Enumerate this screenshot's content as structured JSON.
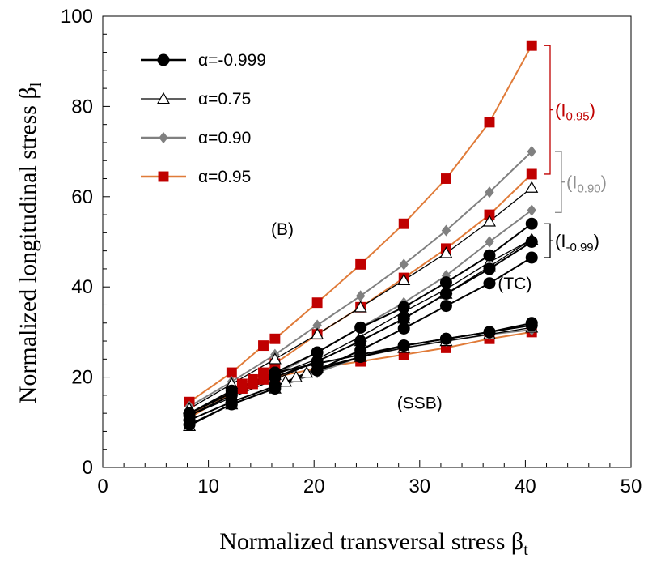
{
  "chart_data": {
    "type": "line",
    "xlabel": "Normalized transversal stress β",
    "xlabel_sub": "t",
    "ylabel": "Normalized longitudinal stress β",
    "ylabel_sub": "l",
    "xlim": [
      0,
      50
    ],
    "ylim": [
      0,
      100
    ],
    "xticks": [
      "0",
      "10",
      "20",
      "30",
      "40",
      "50"
    ],
    "yticks": [
      "0",
      "20",
      "40",
      "60",
      "80",
      "100"
    ],
    "grid": false,
    "legend_position": "top-left",
    "series": [
      {
        "name": "α=-0.999",
        "color": "#000000",
        "marker": "circle",
        "curves": [
          [
            [
              8.2,
              9.5
            ],
            [
              12.2,
              14
            ],
            [
              16.3,
              17.5
            ],
            [
              20.3,
              21.5
            ],
            [
              24.4,
              24.5
            ],
            [
              28.5,
              27
            ],
            [
              32.5,
              28.5
            ],
            [
              36.6,
              30
            ],
            [
              40.6,
              31.5
            ]
          ],
          [
            [
              8.2,
              12
            ],
            [
              12.2,
              17
            ],
            [
              16.3,
              21
            ],
            [
              20.3,
              23
            ],
            [
              24.4,
              25
            ],
            [
              28.5,
              27
            ],
            [
              32.5,
              28.5
            ],
            [
              36.6,
              30
            ],
            [
              40.6,
              32
            ]
          ],
          [
            [
              8.2,
              10.5
            ],
            [
              12.2,
              14.5
            ],
            [
              16.3,
              18
            ],
            [
              20.3,
              21.5
            ],
            [
              24.4,
              26
            ],
            [
              28.5,
              30.8
            ],
            [
              32.5,
              35.8
            ],
            [
              36.6,
              40.8
            ],
            [
              40.6,
              46.5
            ]
          ],
          [
            [
              8.2,
              11.5
            ],
            [
              12.2,
              16
            ],
            [
              16.3,
              20
            ],
            [
              20.3,
              23.5
            ],
            [
              24.4,
              28
            ],
            [
              28.5,
              33
            ],
            [
              32.5,
              38.5
            ],
            [
              36.6,
              44
            ],
            [
              40.6,
              50
            ]
          ],
          [
            [
              8.2,
              12
            ],
            [
              12.2,
              16.5
            ],
            [
              16.3,
              21
            ],
            [
              20.3,
              25.5
            ],
            [
              24.4,
              31
            ],
            [
              28.5,
              35.5
            ],
            [
              32.5,
              41
            ],
            [
              36.6,
              47
            ],
            [
              40.6,
              54
            ]
          ]
        ]
      },
      {
        "name": "α=0.75",
        "color": "#000000",
        "marker": "triangle",
        "curves": [
          [
            [
              8.2,
              9.2
            ],
            [
              12.2,
              14
            ],
            [
              16.3,
              17.5
            ],
            [
              17.3,
              19
            ],
            [
              18.3,
              20
            ],
            [
              19.3,
              21
            ],
            [
              20.3,
              22
            ],
            [
              24.4,
              24.5
            ],
            [
              28.5,
              26.5
            ],
            [
              32.5,
              28
            ],
            [
              36.6,
              29.5
            ],
            [
              40.6,
              31
            ]
          ],
          [
            [
              8.2,
              11.5
            ],
            [
              12.2,
              15.5
            ],
            [
              16.3,
              19.5
            ],
            [
              20.3,
              23.5
            ],
            [
              24.4,
              28
            ],
            [
              28.5,
              33
            ],
            [
              32.5,
              38.5
            ],
            [
              36.6,
              44.5
            ],
            [
              40.6,
              50.5
            ]
          ],
          [
            [
              8.2,
              11.5
            ],
            [
              12.2,
              16
            ],
            [
              16.3,
              20.5
            ],
            [
              20.3,
              24
            ],
            [
              24.4,
              29
            ],
            [
              28.5,
              34.5
            ],
            [
              32.5,
              39.5
            ],
            [
              36.6,
              45.5
            ],
            [
              40.6,
              50.5
            ]
          ],
          [
            [
              8.2,
              13
            ],
            [
              12.2,
              18.5
            ],
            [
              16.3,
              24
            ],
            [
              20.3,
              29.5
            ],
            [
              24.4,
              35.5
            ],
            [
              28.5,
              41.5
            ],
            [
              32.5,
              47.5
            ],
            [
              36.6,
              54.5
            ],
            [
              40.6,
              62
            ]
          ]
        ]
      },
      {
        "name": "α=0.90",
        "color": "#808080",
        "marker": "diamond",
        "curves": [
          [
            [
              8.2,
              9.5
            ],
            [
              12.2,
              14
            ],
            [
              16.3,
              17.5
            ],
            [
              20.3,
              21
            ],
            [
              24.4,
              24.5
            ],
            [
              28.5,
              26.5
            ],
            [
              32.5,
              28
            ],
            [
              36.6,
              29.5
            ],
            [
              40.6,
              30.5
            ]
          ],
          [
            [
              8.2,
              11.5
            ],
            [
              12.2,
              16
            ],
            [
              16.3,
              20.5
            ],
            [
              20.3,
              25.5
            ],
            [
              24.4,
              31
            ],
            [
              28.5,
              36.5
            ],
            [
              32.5,
              42.5
            ],
            [
              36.6,
              50
            ],
            [
              40.6,
              57
            ]
          ],
          [
            [
              8.2,
              13.5
            ],
            [
              12.2,
              19
            ],
            [
              16.3,
              25
            ],
            [
              20.3,
              31.5
            ],
            [
              24.4,
              38
            ],
            [
              28.5,
              45
            ],
            [
              32.5,
              52.5
            ],
            [
              36.6,
              61
            ],
            [
              40.6,
              70
            ]
          ]
        ]
      },
      {
        "name": "α=0.95",
        "color": "#c00000",
        "line_color": "#e07b39",
        "marker": "square",
        "curves": [
          [
            [
              8.2,
              11
            ],
            [
              12.2,
              16.5
            ],
            [
              13.2,
              17.5
            ],
            [
              14.2,
              18.5
            ],
            [
              15.2,
              19.5
            ],
            [
              16.3,
              20
            ],
            [
              20.3,
              22
            ],
            [
              24.4,
              23.5
            ],
            [
              28.5,
              25
            ],
            [
              32.5,
              26.5
            ],
            [
              36.6,
              28.5
            ],
            [
              40.6,
              30
            ]
          ],
          [
            [
              8.2,
              11.5
            ],
            [
              12.2,
              17
            ],
            [
              13.2,
              18.5
            ],
            [
              14.2,
              19.5
            ],
            [
              15.2,
              21
            ],
            [
              16.3,
              23
            ],
            [
              20.3,
              29.5
            ],
            [
              24.4,
              35.5
            ],
            [
              28.5,
              42
            ],
            [
              32.5,
              48.5
            ],
            [
              36.6,
              56
            ],
            [
              40.6,
              65
            ]
          ],
          [
            [
              8.2,
              14.5
            ],
            [
              12.2,
              21
            ],
            [
              15.2,
              27
            ],
            [
              16.3,
              28.5
            ],
            [
              20.3,
              36.5
            ],
            [
              24.4,
              45
            ],
            [
              28.5,
              54
            ],
            [
              32.5,
              64
            ],
            [
              36.6,
              76.5
            ],
            [
              40.6,
              93.5
            ]
          ]
        ]
      }
    ],
    "annotations": [
      {
        "text": "(B)",
        "x": 17,
        "y": 51.5
      },
      {
        "text": "(TC)",
        "x": 39,
        "y": 39.5
      },
      {
        "text": "(SSB)",
        "x": 30,
        "y": 13
      },
      {
        "text": "(I0.95)",
        "main": "(I",
        "sub": "0.95",
        "close": ")",
        "color": "#c00000",
        "y_range": [
          65,
          93.5
        ]
      },
      {
        "text": "(I0.90)",
        "main": "(I",
        "sub": "0.90",
        "close": ")",
        "color": "#909090",
        "y_range": [
          56.5,
          70
        ]
      },
      {
        "text": "(I-0.99)",
        "main": "(I",
        "sub": "-0.99",
        "close": ")",
        "color": "#000000",
        "y_range": [
          46.5,
          54
        ]
      }
    ]
  }
}
